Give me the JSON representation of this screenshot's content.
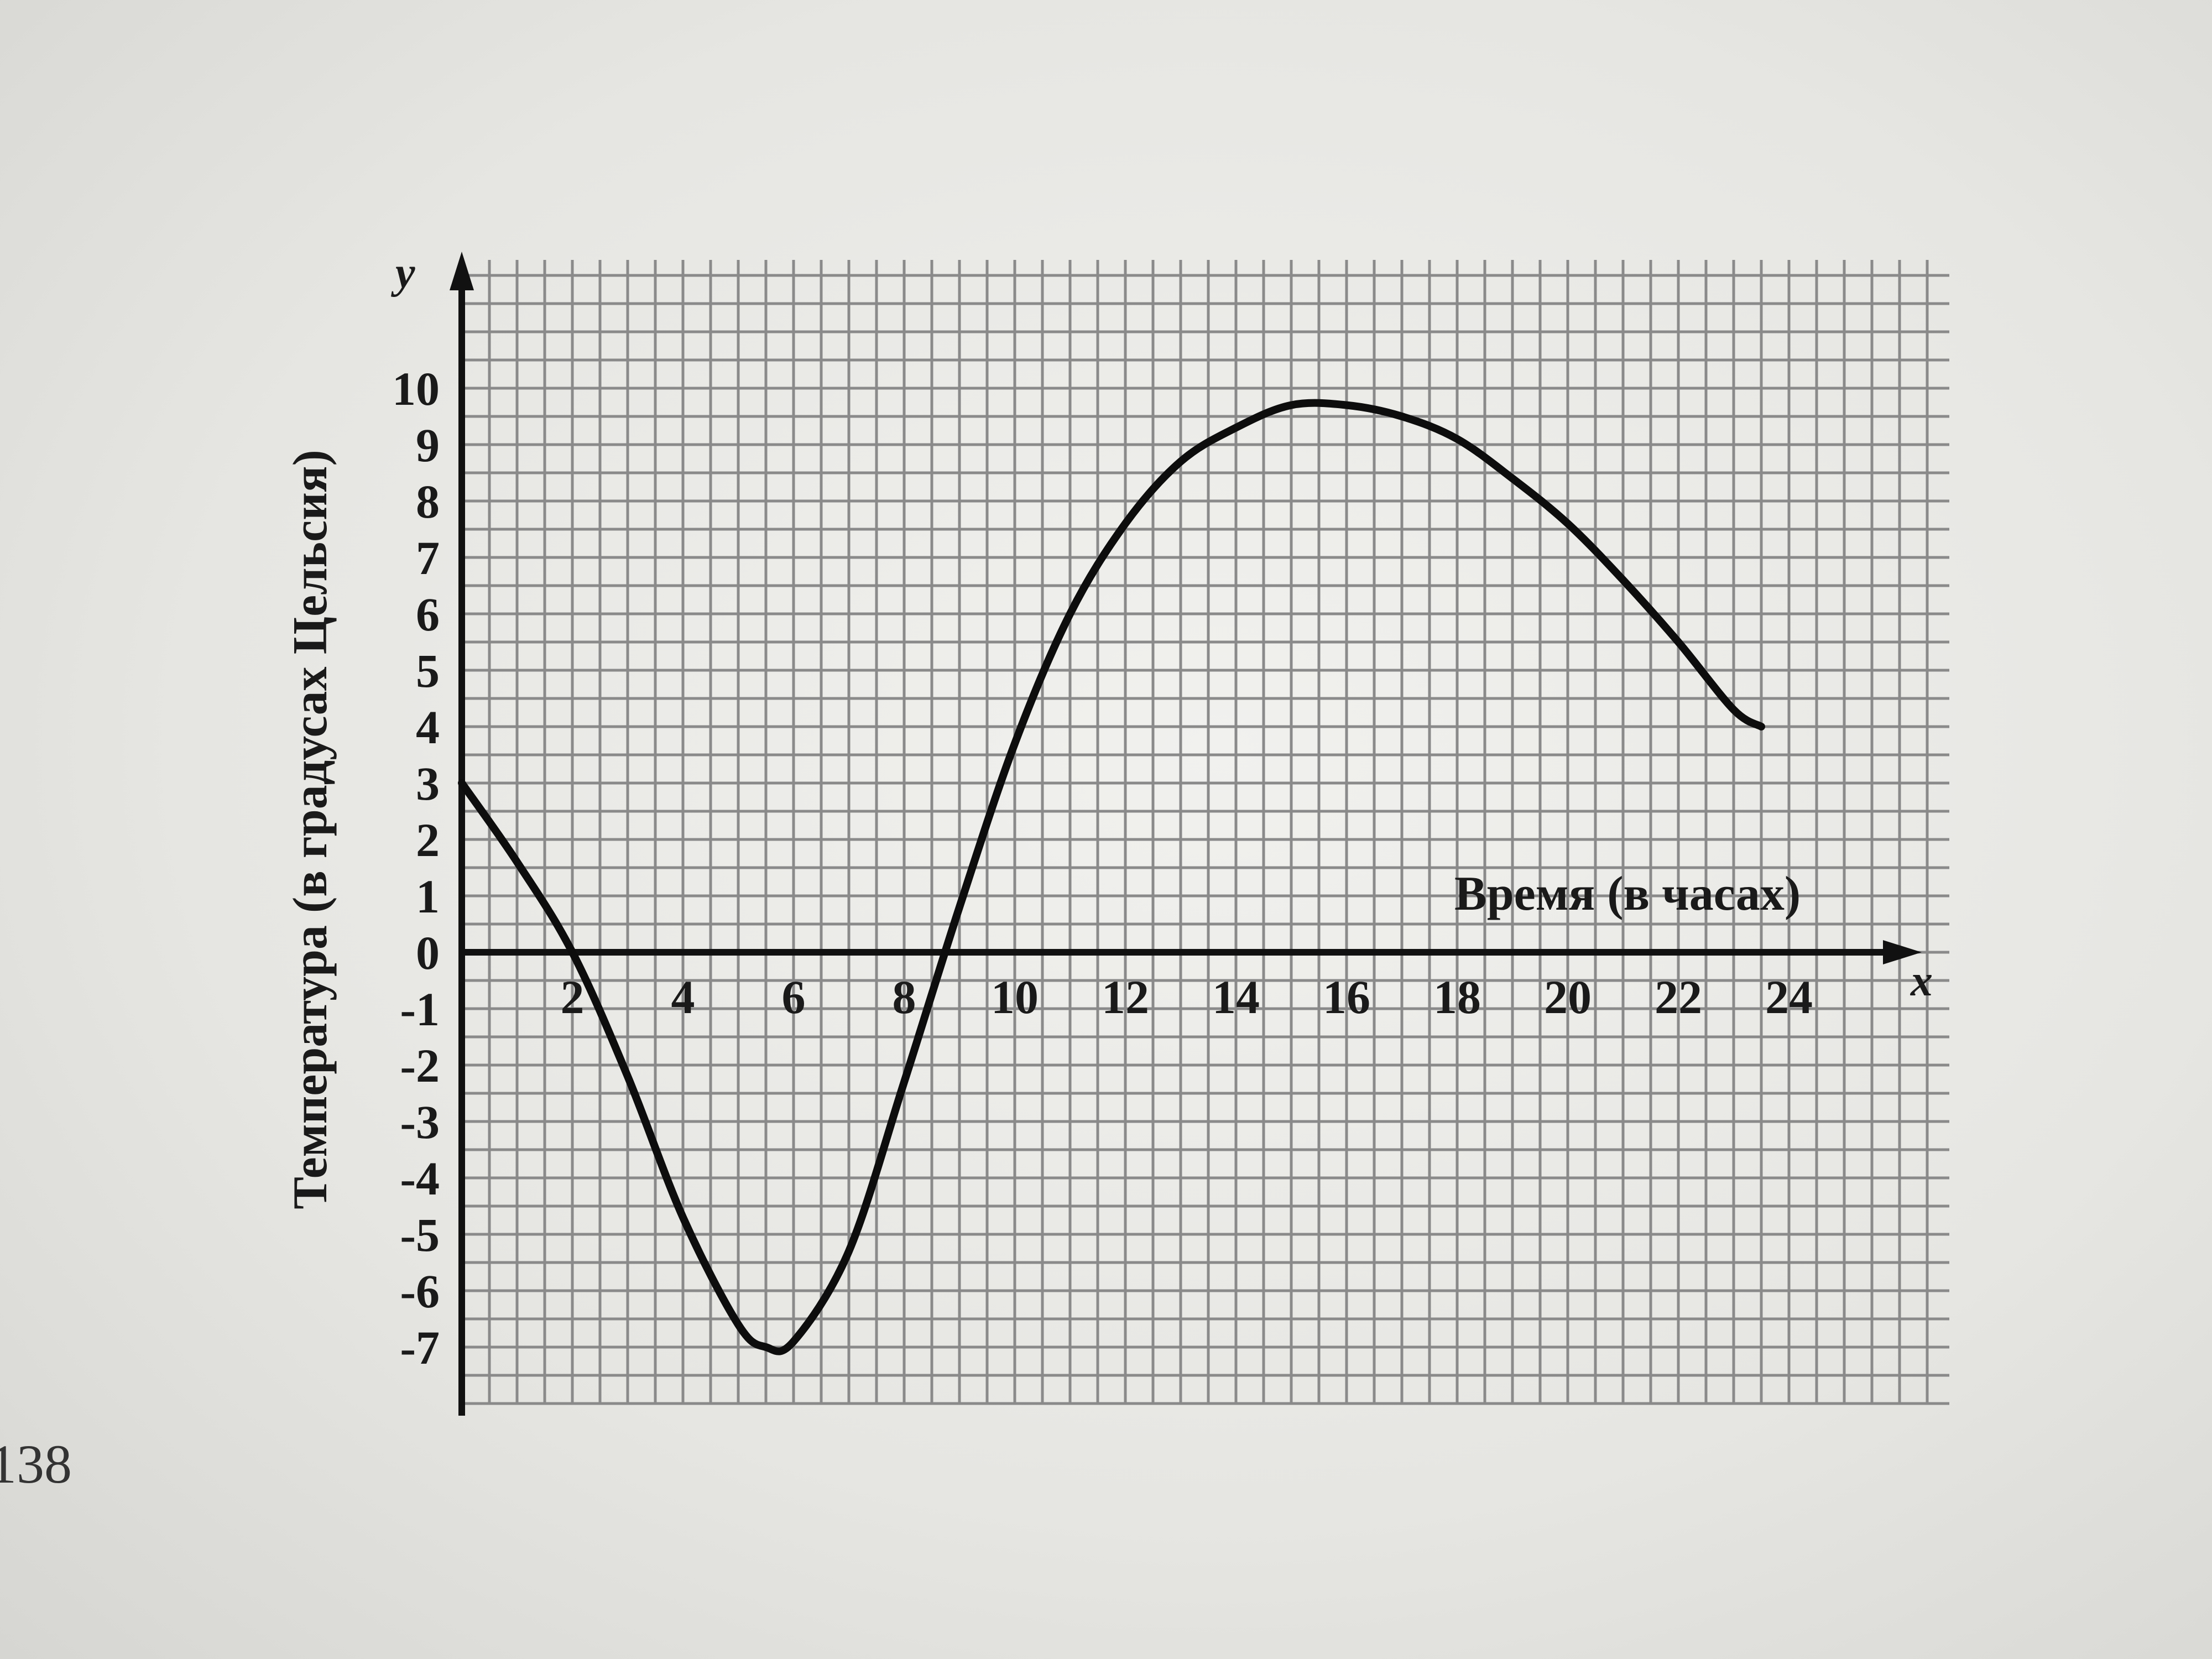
{
  "page_number": "138",
  "chart_data": {
    "type": "line",
    "xlabel": "Время (в часах)",
    "ylabel": "Температура (в градусах Цельсия)",
    "x_axis_letter": "x",
    "y_axis_letter": "y",
    "x_ticks": [
      "2",
      "4",
      "6",
      "8",
      "10",
      "12",
      "14",
      "16",
      "18",
      "20",
      "22",
      "24"
    ],
    "y_ticks": [
      "10",
      "9",
      "8",
      "7",
      "6",
      "5",
      "4",
      "3",
      "2",
      "1",
      "0",
      "-1",
      "-2",
      "-3",
      "-4",
      "-5",
      "-6",
      "-7"
    ],
    "xlim": [
      0,
      26
    ],
    "ylim": [
      -8,
      12
    ],
    "grid": true,
    "series": [
      {
        "x": [
          0,
          1,
          2,
          3,
          4,
          5,
          5.5,
          6,
          7,
          8,
          9,
          10,
          11,
          12,
          13,
          14,
          15,
          16,
          17,
          18,
          19,
          20,
          21,
          22,
          23,
          23.5
        ],
        "y": [
          3,
          1.6,
          0,
          -2.2,
          -4.7,
          -6.6,
          -7,
          -6.9,
          -5.3,
          -2.3,
          0.8,
          3.7,
          6,
          7.6,
          8.7,
          9.3,
          9.7,
          9.7,
          9.5,
          9.1,
          8.4,
          7.6,
          6.6,
          5.5,
          4.3,
          4
        ]
      }
    ]
  }
}
